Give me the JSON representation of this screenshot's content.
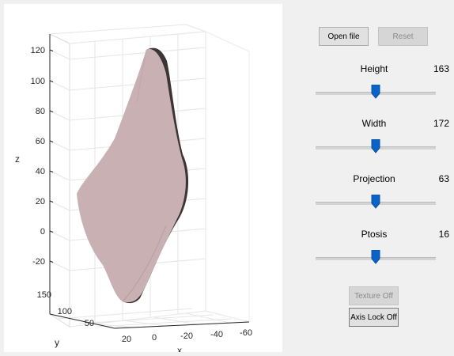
{
  "controls": {
    "open_file_label": "Open file",
    "reset_label": "Reset",
    "texture_label": "Texture Off",
    "axis_lock_label": "Axis Lock Off"
  },
  "sliders": [
    {
      "label": "Height",
      "value": "163",
      "position": 0.5
    },
    {
      "label": "Width",
      "value": "172",
      "position": 0.5
    },
    {
      "label": "Projection",
      "value": "63",
      "position": 0.5
    },
    {
      "label": "Ptosis",
      "value": "16",
      "position": 0.5
    }
  ],
  "plot": {
    "z_label": "z",
    "y_label": "y",
    "x_label": "x",
    "z_ticks": [
      "120",
      "100",
      "80",
      "60",
      "40",
      "20",
      "0",
      "-20"
    ],
    "y_ticks": [
      "150",
      "100",
      "50"
    ],
    "x_ticks": [
      "20",
      "0",
      "-20",
      "-40",
      "-60"
    ],
    "surface_color": "#c9b1b3",
    "shadow_color": "#3b3536",
    "accent_color": "#0a64c8"
  }
}
